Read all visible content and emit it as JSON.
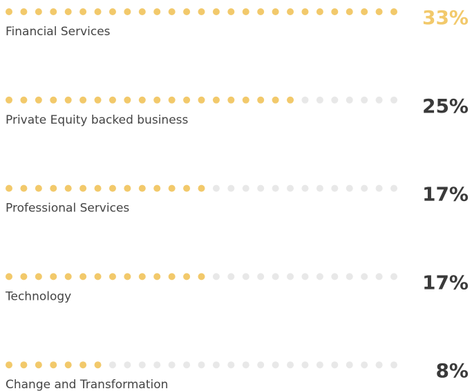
{
  "chart_data": {
    "type": "dot",
    "categories": [
      "Financial Services",
      "Private Equity backed business",
      "Professional Services",
      "Technology",
      "Change and Transformation"
    ],
    "values": [
      33,
      25,
      17,
      17,
      8
    ],
    "value_labels": [
      "33%",
      "25%",
      "17%",
      "17%",
      "8%"
    ],
    "color": "#f2c96b",
    "empty_color": "#e8e8e8",
    "highlight_color": "#f2c96b",
    "label_color": "#3a3a3a"
  }
}
